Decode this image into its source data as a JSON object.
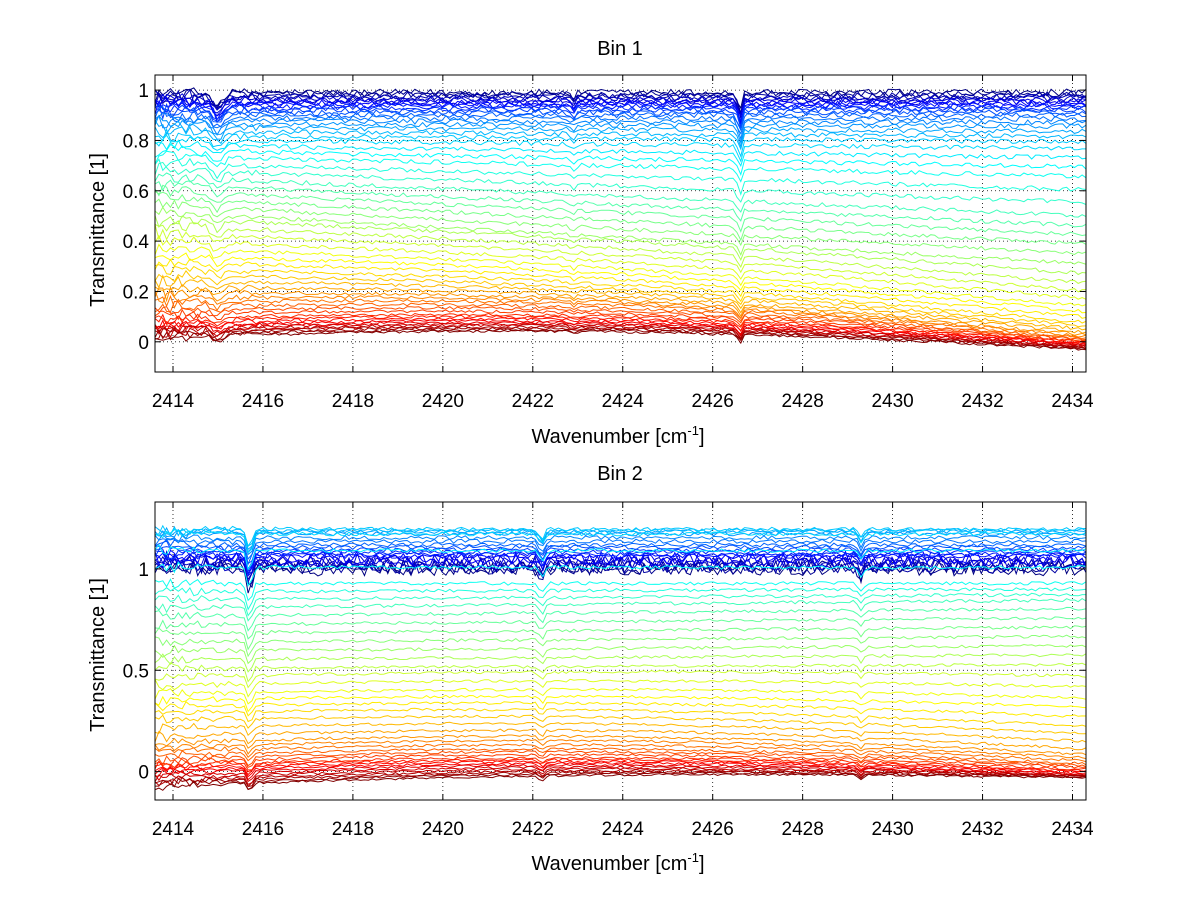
{
  "chart_data": [
    {
      "type": "line",
      "title": "Bin 1",
      "xlabel": "Wavenumber [cm",
      "xlabel_sup": "-1",
      "xlabel_end": "]",
      "ylabel": "Transmittance [1]",
      "xlim": [
        2413.6,
        2434.3
      ],
      "ylim": [
        -0.12,
        1.06
      ],
      "xticks": [
        2414,
        2416,
        2418,
        2420,
        2422,
        2424,
        2426,
        2428,
        2430,
        2432,
        2434
      ],
      "xtick_labels": [
        "2414",
        "2416",
        "2418",
        "2420",
        "2422",
        "2424",
        "2426",
        "2428",
        "2430",
        "2432",
        "2434"
      ],
      "yticks": [
        0,
        0.2,
        0.4,
        0.6,
        0.8,
        1
      ],
      "ytick_labels": [
        "0",
        "0.2",
        "0.4",
        "0.6",
        "0.8",
        "1"
      ],
      "grid": true,
      "colormap": "jet",
      "series_count": 60,
      "series_center_start": [
        0.99,
        0.97,
        0.95,
        0.93,
        0.9,
        0.86,
        0.81,
        0.74,
        0.65,
        0.56,
        0.47,
        0.37,
        0.28,
        0.2,
        0.14,
        0.09,
        0.06,
        0.04,
        0.02
      ],
      "series_center_end": [
        0.99,
        0.97,
        0.95,
        0.93,
        0.9,
        0.85,
        0.78,
        0.66,
        0.49,
        0.37,
        0.24,
        0.14,
        0.07,
        0.03,
        0.01,
        0.0,
        -0.01,
        -0.02,
        -0.03
      ],
      "features": [
        {
          "x": 2426.6,
          "depth": 0.08,
          "width": 0.06
        },
        {
          "x": 2422.9,
          "depth": 0.02,
          "width": 0.08
        },
        {
          "x": 2415.0,
          "depth": 0.05,
          "width": 0.15
        }
      ]
    },
    {
      "type": "line",
      "title": "Bin 2",
      "xlabel": "Wavenumber [cm",
      "xlabel_sup": "-1",
      "xlabel_end": "]",
      "ylabel": "Transmittance [1]",
      "xlim": [
        2413.6,
        2434.3
      ],
      "ylim": [
        -0.14,
        1.33
      ],
      "xticks": [
        2414,
        2416,
        2418,
        2420,
        2422,
        2424,
        2426,
        2428,
        2430,
        2432,
        2434
      ],
      "xtick_labels": [
        "2414",
        "2416",
        "2418",
        "2420",
        "2422",
        "2424",
        "2426",
        "2428",
        "2430",
        "2432",
        "2434"
      ],
      "yticks": [
        0,
        0.5,
        1
      ],
      "ytick_labels": [
        "0",
        "0.5",
        "1"
      ],
      "grid": true,
      "colormap": "jet",
      "series_count": 60,
      "series_center_start": [
        1.0,
        1.02,
        1.05,
        1.08,
        1.12,
        1.18,
        1.2,
        0.93,
        0.8,
        0.66,
        0.52,
        0.38,
        0.28,
        0.15,
        0.08,
        0.03,
        0.0,
        -0.04,
        -0.07
      ],
      "series_center_end": [
        1.0,
        1.02,
        1.05,
        1.08,
        1.12,
        1.18,
        1.2,
        0.93,
        0.84,
        0.69,
        0.54,
        0.36,
        0.21,
        0.09,
        0.04,
        0.01,
        -0.01,
        -0.02,
        -0.03
      ],
      "features": [
        {
          "x": 2415.7,
          "depth": 0.1,
          "width": 0.08
        },
        {
          "x": 2422.2,
          "depth": 0.05,
          "width": 0.08
        },
        {
          "x": 2429.3,
          "depth": 0.04,
          "width": 0.08
        }
      ]
    }
  ]
}
